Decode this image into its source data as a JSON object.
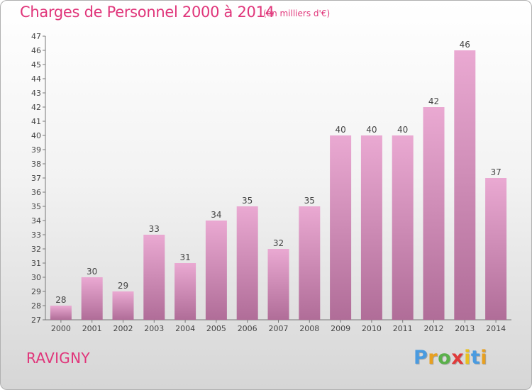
{
  "header": {
    "title": "Charges de Personnel 2000 à 2014",
    "subtitle": "(en milliers d'€)"
  },
  "footer": {
    "town": "RAVIGNY",
    "logo_text": "Proxiti"
  },
  "colors": {
    "accent": "#e0357a",
    "bar_top": "#eaa9d2",
    "bar_bottom": "#b06d98"
  },
  "chart_data": {
    "type": "bar",
    "title": "Charges de Personnel 2000 à 2014",
    "subtitle": "(en milliers d'€)",
    "categories": [
      "2000",
      "2001",
      "2002",
      "2003",
      "2004",
      "2005",
      "2006",
      "2007",
      "2008",
      "2009",
      "2010",
      "2011",
      "2012",
      "2013",
      "2014"
    ],
    "values": [
      28,
      30,
      29,
      33,
      31,
      34,
      35,
      32,
      35,
      40,
      40,
      40,
      42,
      46,
      37
    ],
    "ylim": [
      27,
      47
    ],
    "yticks": [
      27,
      28,
      29,
      30,
      31,
      32,
      33,
      34,
      35,
      36,
      37,
      38,
      39,
      40,
      41,
      42,
      43,
      44,
      45,
      46,
      47
    ],
    "grid": false,
    "data_labels": true
  }
}
